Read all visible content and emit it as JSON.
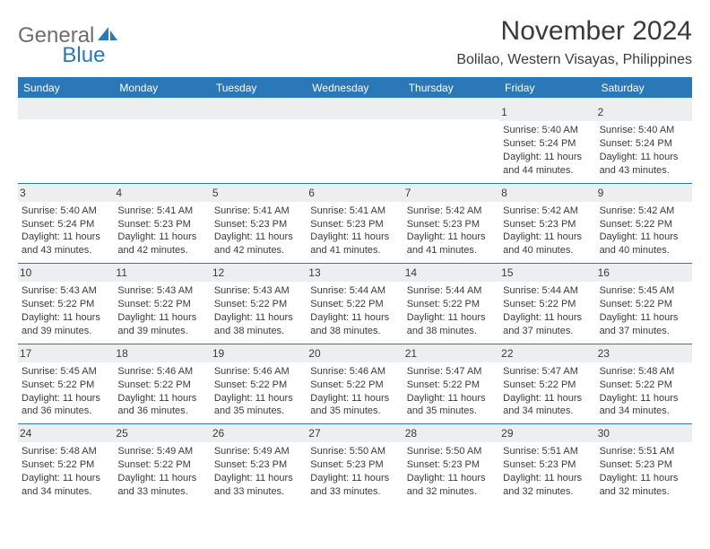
{
  "logo": {
    "part1": "General",
    "part2": "Blue"
  },
  "title": "November 2024",
  "location": "Bolilao, Western Visayas, Philippines",
  "colors": {
    "brand_blue": "#2a78b8",
    "logo_gray": "#6e6e6e",
    "text": "#3a3a3a",
    "shade": "#eceeef",
    "bg": "#ffffff"
  },
  "dow": [
    "Sunday",
    "Monday",
    "Tuesday",
    "Wednesday",
    "Thursday",
    "Friday",
    "Saturday"
  ],
  "weeks": [
    [
      null,
      null,
      null,
      null,
      null,
      {
        "n": "1",
        "sr": "Sunrise: 5:40 AM",
        "ss": "Sunset: 5:24 PM",
        "dl": "Daylight: 11 hours and 44 minutes."
      },
      {
        "n": "2",
        "sr": "Sunrise: 5:40 AM",
        "ss": "Sunset: 5:24 PM",
        "dl": "Daylight: 11 hours and 43 minutes."
      }
    ],
    [
      {
        "n": "3",
        "sr": "Sunrise: 5:40 AM",
        "ss": "Sunset: 5:24 PM",
        "dl": "Daylight: 11 hours and 43 minutes."
      },
      {
        "n": "4",
        "sr": "Sunrise: 5:41 AM",
        "ss": "Sunset: 5:23 PM",
        "dl": "Daylight: 11 hours and 42 minutes."
      },
      {
        "n": "5",
        "sr": "Sunrise: 5:41 AM",
        "ss": "Sunset: 5:23 PM",
        "dl": "Daylight: 11 hours and 42 minutes."
      },
      {
        "n": "6",
        "sr": "Sunrise: 5:41 AM",
        "ss": "Sunset: 5:23 PM",
        "dl": "Daylight: 11 hours and 41 minutes."
      },
      {
        "n": "7",
        "sr": "Sunrise: 5:42 AM",
        "ss": "Sunset: 5:23 PM",
        "dl": "Daylight: 11 hours and 41 minutes."
      },
      {
        "n": "8",
        "sr": "Sunrise: 5:42 AM",
        "ss": "Sunset: 5:23 PM",
        "dl": "Daylight: 11 hours and 40 minutes."
      },
      {
        "n": "9",
        "sr": "Sunrise: 5:42 AM",
        "ss": "Sunset: 5:22 PM",
        "dl": "Daylight: 11 hours and 40 minutes."
      }
    ],
    [
      {
        "n": "10",
        "sr": "Sunrise: 5:43 AM",
        "ss": "Sunset: 5:22 PM",
        "dl": "Daylight: 11 hours and 39 minutes."
      },
      {
        "n": "11",
        "sr": "Sunrise: 5:43 AM",
        "ss": "Sunset: 5:22 PM",
        "dl": "Daylight: 11 hours and 39 minutes."
      },
      {
        "n": "12",
        "sr": "Sunrise: 5:43 AM",
        "ss": "Sunset: 5:22 PM",
        "dl": "Daylight: 11 hours and 38 minutes."
      },
      {
        "n": "13",
        "sr": "Sunrise: 5:44 AM",
        "ss": "Sunset: 5:22 PM",
        "dl": "Daylight: 11 hours and 38 minutes."
      },
      {
        "n": "14",
        "sr": "Sunrise: 5:44 AM",
        "ss": "Sunset: 5:22 PM",
        "dl": "Daylight: 11 hours and 38 minutes."
      },
      {
        "n": "15",
        "sr": "Sunrise: 5:44 AM",
        "ss": "Sunset: 5:22 PM",
        "dl": "Daylight: 11 hours and 37 minutes."
      },
      {
        "n": "16",
        "sr": "Sunrise: 5:45 AM",
        "ss": "Sunset: 5:22 PM",
        "dl": "Daylight: 11 hours and 37 minutes."
      }
    ],
    [
      {
        "n": "17",
        "sr": "Sunrise: 5:45 AM",
        "ss": "Sunset: 5:22 PM",
        "dl": "Daylight: 11 hours and 36 minutes."
      },
      {
        "n": "18",
        "sr": "Sunrise: 5:46 AM",
        "ss": "Sunset: 5:22 PM",
        "dl": "Daylight: 11 hours and 36 minutes."
      },
      {
        "n": "19",
        "sr": "Sunrise: 5:46 AM",
        "ss": "Sunset: 5:22 PM",
        "dl": "Daylight: 11 hours and 35 minutes."
      },
      {
        "n": "20",
        "sr": "Sunrise: 5:46 AM",
        "ss": "Sunset: 5:22 PM",
        "dl": "Daylight: 11 hours and 35 minutes."
      },
      {
        "n": "21",
        "sr": "Sunrise: 5:47 AM",
        "ss": "Sunset: 5:22 PM",
        "dl": "Daylight: 11 hours and 35 minutes."
      },
      {
        "n": "22",
        "sr": "Sunrise: 5:47 AM",
        "ss": "Sunset: 5:22 PM",
        "dl": "Daylight: 11 hours and 34 minutes."
      },
      {
        "n": "23",
        "sr": "Sunrise: 5:48 AM",
        "ss": "Sunset: 5:22 PM",
        "dl": "Daylight: 11 hours and 34 minutes."
      }
    ],
    [
      {
        "n": "24",
        "sr": "Sunrise: 5:48 AM",
        "ss": "Sunset: 5:22 PM",
        "dl": "Daylight: 11 hours and 34 minutes."
      },
      {
        "n": "25",
        "sr": "Sunrise: 5:49 AM",
        "ss": "Sunset: 5:22 PM",
        "dl": "Daylight: 11 hours and 33 minutes."
      },
      {
        "n": "26",
        "sr": "Sunrise: 5:49 AM",
        "ss": "Sunset: 5:23 PM",
        "dl": "Daylight: 11 hours and 33 minutes."
      },
      {
        "n": "27",
        "sr": "Sunrise: 5:50 AM",
        "ss": "Sunset: 5:23 PM",
        "dl": "Daylight: 11 hours and 33 minutes."
      },
      {
        "n": "28",
        "sr": "Sunrise: 5:50 AM",
        "ss": "Sunset: 5:23 PM",
        "dl": "Daylight: 11 hours and 32 minutes."
      },
      {
        "n": "29",
        "sr": "Sunrise: 5:51 AM",
        "ss": "Sunset: 5:23 PM",
        "dl": "Daylight: 11 hours and 32 minutes."
      },
      {
        "n": "30",
        "sr": "Sunrise: 5:51 AM",
        "ss": "Sunset: 5:23 PM",
        "dl": "Daylight: 11 hours and 32 minutes."
      }
    ]
  ]
}
